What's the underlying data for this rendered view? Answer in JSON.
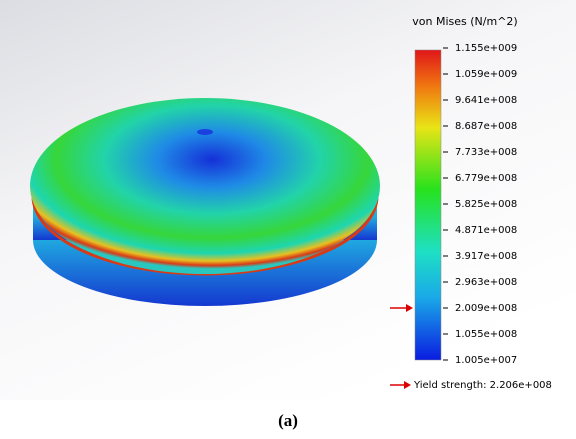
{
  "legend": {
    "title": "von Mises (N/m^2)",
    "ticks": [
      "1.155e+009",
      "1.059e+009",
      "9.641e+008",
      "8.687e+008",
      "7.733e+008",
      "6.779e+008",
      "5.825e+008",
      "4.871e+008",
      "3.917e+008",
      "2.963e+008",
      "2.009e+008",
      "1.055e+008",
      "1.005e+007"
    ]
  },
  "yield": {
    "label": "Yield strength: 2.206e+008"
  },
  "caption": "(a)"
}
